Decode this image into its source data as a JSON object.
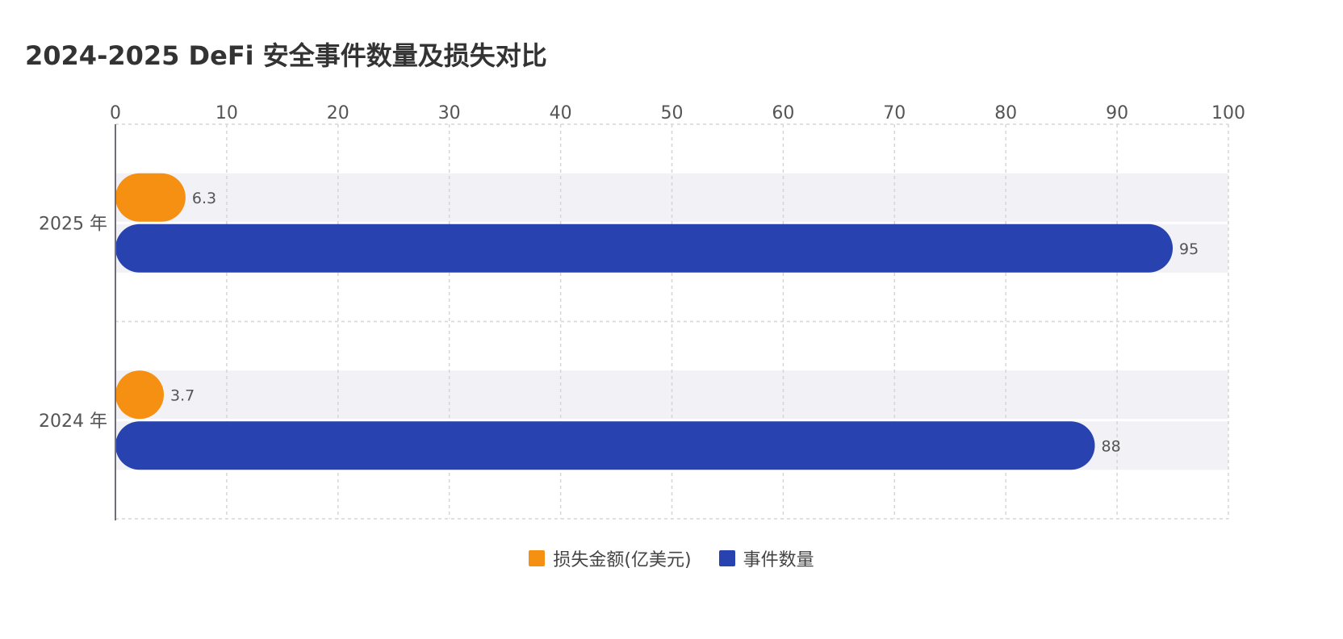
{
  "chart_data": {
    "type": "bar",
    "orientation": "horizontal",
    "title": "2024-2025 DeFi 安全事件数量及损失对比",
    "categories": [
      "2025 年",
      "2024 年"
    ],
    "series": [
      {
        "name": "损失金额(亿美元)",
        "values": [
          6.3,
          3.7
        ],
        "color": "#f59013"
      },
      {
        "name": "事件数量",
        "values": [
          95,
          88
        ],
        "color": "#2842b0"
      }
    ],
    "xlim": [
      0,
      100
    ],
    "x_ticks": [
      0,
      10,
      20,
      30,
      40,
      50,
      60,
      70,
      80,
      90,
      100
    ],
    "xaxis_position": "top",
    "grid": true,
    "legend_position": "bottom-center",
    "data_labels": true
  }
}
